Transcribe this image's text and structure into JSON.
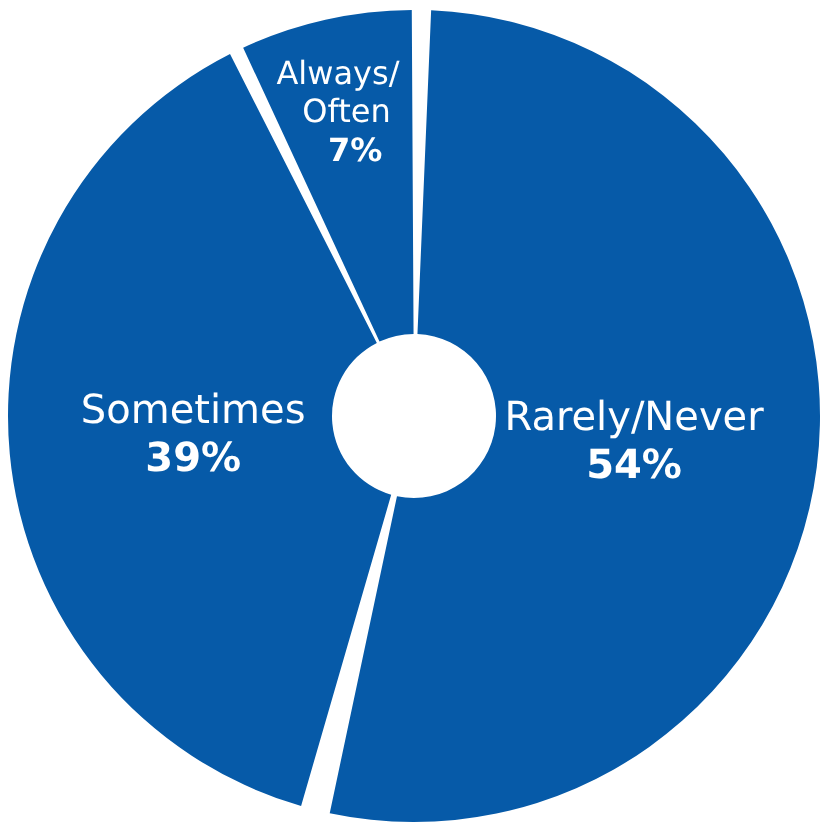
{
  "chart_data": {
    "type": "donut",
    "categories": [
      "Rarely/Never",
      "Sometimes",
      "Always/Often"
    ],
    "values": [
      54,
      39,
      7
    ],
    "colors": [
      "#065aa8",
      "#065aa8",
      "#065aa8"
    ],
    "value_labels": [
      "54%",
      "39%",
      "7%"
    ],
    "legend": false
  }
}
